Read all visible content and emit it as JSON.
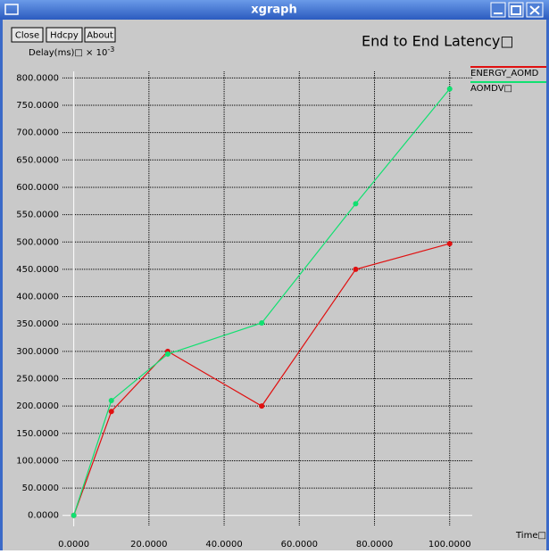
{
  "window": {
    "title": "xgraph",
    "buttons": [
      "Close",
      "Hdcpy",
      "About"
    ]
  },
  "chart_data": {
    "type": "line",
    "title": "End to End Latency□",
    "y_label": "Delay(ms)□ × 10",
    "y_label_exponent": "-3",
    "x_label": "Time□",
    "series": [
      {
        "name": "ENERGY_AOMD",
        "color": "#e01010",
        "x": [
          0,
          10,
          25,
          50,
          75,
          100
        ],
        "values": [
          0,
          190,
          300,
          200,
          450,
          497
        ]
      },
      {
        "name": "AOMDV□",
        "color": "#10e070",
        "x": [
          0,
          10,
          25,
          50,
          75,
          100
        ],
        "values": [
          0,
          210,
          295,
          352,
          570,
          780
        ]
      }
    ],
    "xlim": [
      -3,
      106
    ],
    "ylim": [
      -20,
      812
    ],
    "xticks": [
      {
        "value": 0,
        "label": "0.0000"
      },
      {
        "value": 20,
        "label": "20.0000"
      },
      {
        "value": 40,
        "label": "40.0000"
      },
      {
        "value": 60,
        "label": "60.0000"
      },
      {
        "value": 80,
        "label": "80.0000"
      },
      {
        "value": 100,
        "label": "100.0000"
      }
    ],
    "yticks": [
      {
        "value": 0,
        "label": "0.0000"
      },
      {
        "value": 50,
        "label": "50.0000"
      },
      {
        "value": 100,
        "label": "100.0000"
      },
      {
        "value": 150,
        "label": "150.0000"
      },
      {
        "value": 200,
        "label": "200.0000"
      },
      {
        "value": 250,
        "label": "250.0000"
      },
      {
        "value": 300,
        "label": "300.0000"
      },
      {
        "value": 350,
        "label": "350.0000"
      },
      {
        "value": 400,
        "label": "400.0000"
      },
      {
        "value": 450,
        "label": "450.0000"
      },
      {
        "value": 500,
        "label": "500.0000"
      },
      {
        "value": 550,
        "label": "550.0000"
      },
      {
        "value": 600,
        "label": "600.0000"
      },
      {
        "value": 650,
        "label": "650.0000"
      },
      {
        "value": 700,
        "label": "700.0000"
      },
      {
        "value": 750,
        "label": "750.0000"
      },
      {
        "value": 800,
        "label": "800.0000"
      }
    ],
    "grid": true
  }
}
